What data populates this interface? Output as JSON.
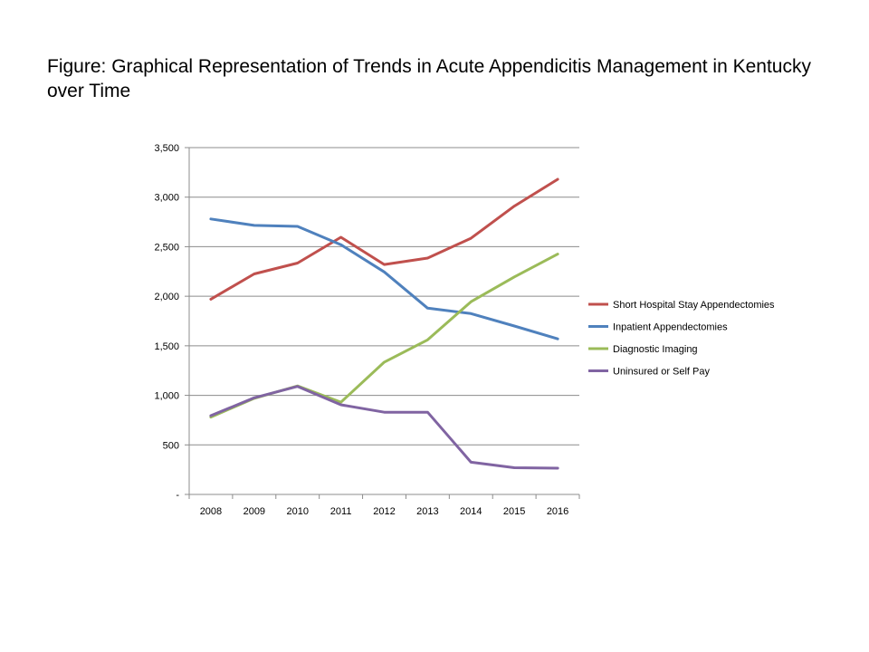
{
  "figure": {
    "title": "Figure: Graphical Representation of Trends in Acute Appendicitis Management in Kentucky over Time"
  },
  "chart_data": {
    "type": "line",
    "title": "",
    "xlabel": "",
    "ylabel": "",
    "categories": [
      "2008",
      "2009",
      "2010",
      "2011",
      "2012",
      "2013",
      "2014",
      "2015",
      "2016"
    ],
    "ylim": [
      0,
      3500
    ],
    "yticks": [
      0,
      500,
      1000,
      1500,
      2000,
      2500,
      3000,
      3500
    ],
    "ytick_labels": [
      "-",
      "500",
      "1,000",
      "1,500",
      "2,000",
      "2,500",
      "3,000",
      "3,500"
    ],
    "grid": "horizontal",
    "legend_position": "right",
    "series": [
      {
        "name": "Short Hospital Stay Appendectomies",
        "color": "#C0504D",
        "values": [
          1970,
          2225,
          2335,
          2595,
          2320,
          2385,
          2585,
          2910,
          3180
        ]
      },
      {
        "name": "Inpatient Appendectomies",
        "color": "#4F81BD",
        "values": [
          2780,
          2715,
          2705,
          2520,
          2245,
          1880,
          1825,
          1700,
          1570
        ]
      },
      {
        "name": "Diagnostic Imaging",
        "color": "#9BBB59",
        "values": [
          780,
          970,
          1095,
          930,
          1335,
          1560,
          1945,
          2195,
          2425
        ]
      },
      {
        "name": "Uninsured or Self Pay",
        "color": "#8064A2",
        "values": [
          795,
          975,
          1090,
          905,
          830,
          830,
          325,
          270,
          265
        ]
      }
    ]
  }
}
